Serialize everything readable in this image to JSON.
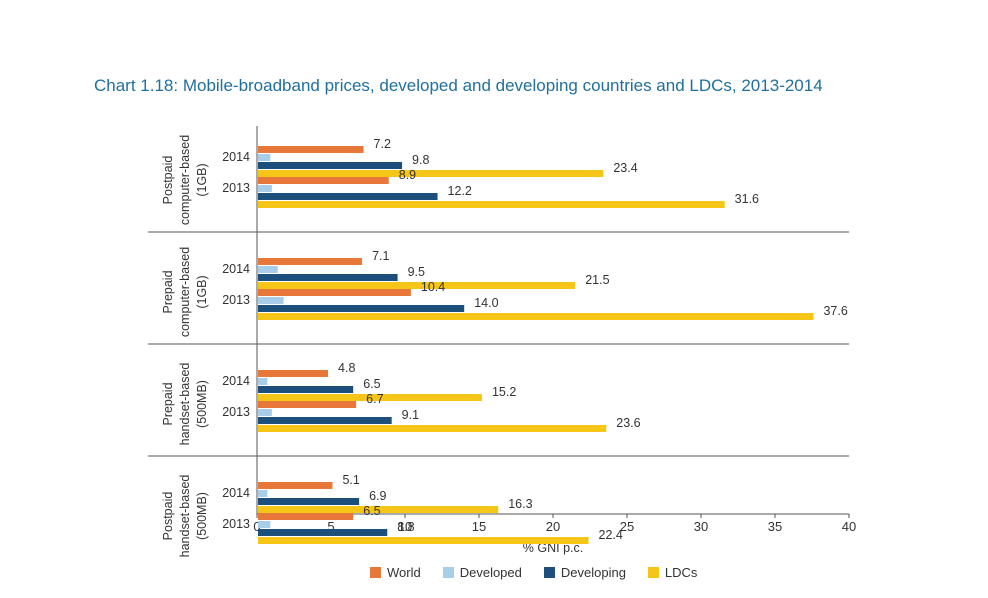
{
  "chart_data": {
    "type": "bar",
    "orientation": "horizontal",
    "title": "Chart 1.18: Mobile-broadband prices, developed and developing countries and LDCs, 2013-2014",
    "xlabel": "% GNI p.c.",
    "xlim": [
      0,
      40
    ],
    "xticks": [
      "0",
      "5",
      "10",
      "15",
      "20",
      "25",
      "30",
      "35",
      "40"
    ],
    "groups": [
      {
        "label_lines": [
          "Postpaid",
          "computer-based",
          "(1GB)"
        ],
        "years": [
          {
            "year": "2014",
            "values": {
              "World": 7.2,
              "Developed": 0.9,
              "Developing": 9.8,
              "LDCs": 23.4
            }
          },
          {
            "year": "2013",
            "values": {
              "World": 8.9,
              "Developed": 1.0,
              "Developing": 12.2,
              "LDCs": 31.6
            }
          }
        ]
      },
      {
        "label_lines": [
          "Prepaid",
          "computer-based",
          "(1GB)"
        ],
        "years": [
          {
            "year": "2014",
            "values": {
              "World": 7.1,
              "Developed": 1.4,
              "Developing": 9.5,
              "LDCs": 21.5
            }
          },
          {
            "year": "2013",
            "values": {
              "World": 10.4,
              "Developed": 1.8,
              "Developing": 14.0,
              "LDCs": 37.6
            }
          }
        ]
      },
      {
        "label_lines": [
          "Prepaid",
          "handset-based",
          "(500MB)"
        ],
        "years": [
          {
            "year": "2014",
            "values": {
              "World": 4.8,
              "Developed": 0.7,
              "Developing": 6.5,
              "LDCs": 15.2
            }
          },
          {
            "year": "2013",
            "values": {
              "World": 6.7,
              "Developed": 1.0,
              "Developing": 9.1,
              "LDCs": 23.6
            }
          }
        ]
      },
      {
        "label_lines": [
          "Postpaid",
          "handset-based",
          "(500MB)"
        ],
        "years": [
          {
            "year": "2014",
            "values": {
              "World": 5.1,
              "Developed": 0.7,
              "Developing": 6.9,
              "LDCs": 16.3
            }
          },
          {
            "year": "2013",
            "values": {
              "World": 6.5,
              "Developed": 0.9,
              "Developing": 8.8,
              "LDCs": 22.4
            }
          }
        ]
      }
    ],
    "series": [
      {
        "name": "World",
        "color": "#e8773a",
        "labeled": true
      },
      {
        "name": "Developed",
        "color": "#a8cde8",
        "labeled": false
      },
      {
        "name": "Developing",
        "color": "#1c4f7c",
        "labeled": true
      },
      {
        "name": "LDCs",
        "color": "#f5c518",
        "labeled": true
      }
    ],
    "legend_position": "bottom-center",
    "grid": false
  }
}
